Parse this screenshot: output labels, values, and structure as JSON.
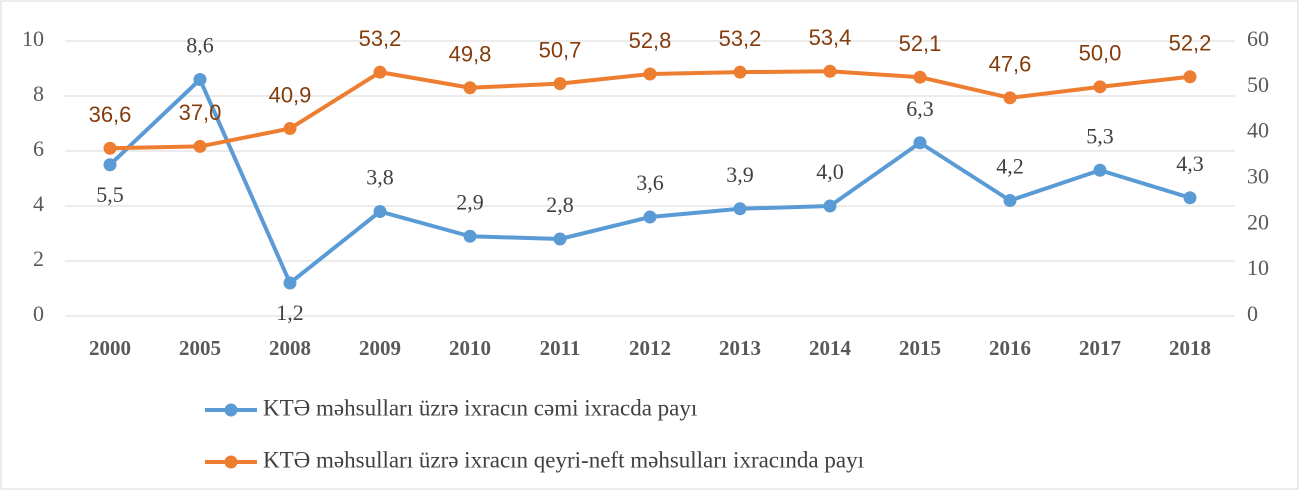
{
  "chart_data": {
    "type": "line",
    "categories": [
      "2000",
      "2005",
      "2008",
      "2009",
      "2010",
      "2011",
      "2012",
      "2013",
      "2014",
      "2015",
      "2016",
      "2017",
      "2018"
    ],
    "series": [
      {
        "name": "KTƏ məhsulları üzrə ixracın cəmi ixracda payı",
        "color": "#5b9bd5",
        "values": [
          5.5,
          8.6,
          1.2,
          3.8,
          2.9,
          2.8,
          3.6,
          3.9,
          4.0,
          6.3,
          4.2,
          5.3,
          4.3
        ],
        "value_labels": [
          "5,5",
          "8,6",
          "1,2",
          "3,8",
          "2,9",
          "2,8",
          "3,6",
          "3,9",
          "4,0",
          "6,3",
          "4,2",
          "5,3",
          "4,3"
        ]
      },
      {
        "name": "KTƏ məhsulları üzrə ixracın qeyri-neft məhsulları ixracında payı",
        "color": "#ed7d31",
        "axis": "y2",
        "values": [
          36.6,
          37.0,
          40.9,
          53.2,
          49.8,
          50.7,
          52.8,
          53.2,
          53.4,
          52.1,
          47.6,
          50.0,
          52.2
        ],
        "value_labels": [
          "36,6",
          "37,0",
          "40,9",
          "53,2",
          "49,8",
          "50,7",
          "52,8",
          "53,2",
          "53,4",
          "52,1",
          "47,6",
          "50,0",
          "52,2"
        ]
      }
    ],
    "ylim": [
      0,
      10
    ],
    "yticks": [
      0,
      2,
      4,
      6,
      8,
      10
    ],
    "y2lim": [
      0,
      60
    ],
    "y2ticks": [
      0,
      10,
      20,
      30,
      40,
      50,
      60
    ],
    "grid": true,
    "legend": "bottom"
  }
}
